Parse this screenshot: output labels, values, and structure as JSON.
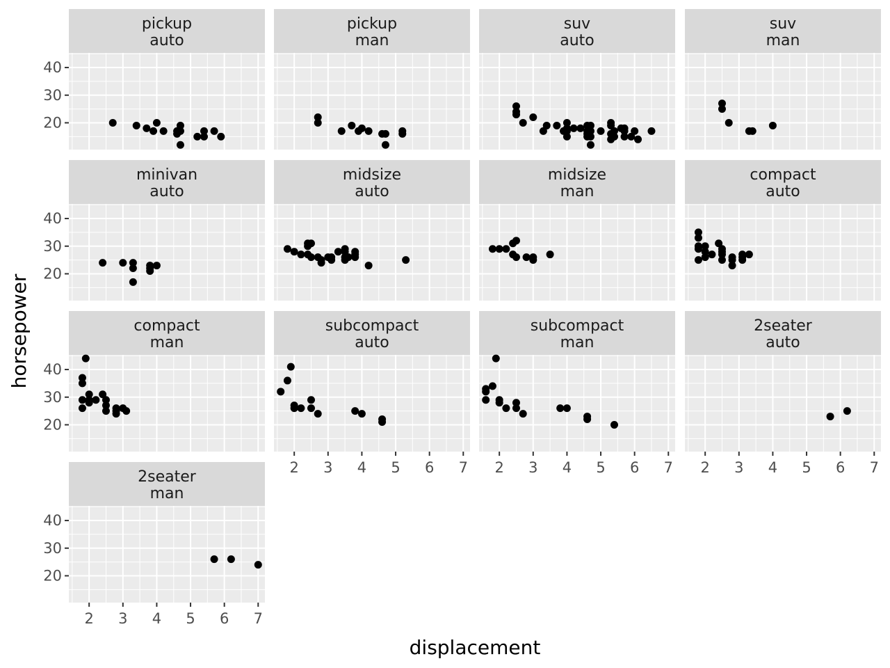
{
  "chart_data": {
    "type": "scatter",
    "xlabel": "displacement",
    "ylabel": "horsepower",
    "xlim": [
      1.4,
      7.2
    ],
    "ylim": [
      10.3,
      45.3
    ],
    "x_ticks": [
      2,
      3,
      4,
      5,
      6,
      7
    ],
    "y_ticks": [
      20,
      30,
      40
    ],
    "grid": true,
    "point_color": "#000000",
    "panel_bg": "#ebebeb",
    "strip_bg": "#d9d9d9",
    "panels": [
      {
        "label_top": "pickup",
        "label_bottom": "auto",
        "points": [
          [
            2.7,
            20
          ],
          [
            3.4,
            19
          ],
          [
            3.7,
            18
          ],
          [
            3.9,
            17
          ],
          [
            4.0,
            20
          ],
          [
            4.2,
            17
          ],
          [
            4.6,
            16
          ],
          [
            4.6,
            17
          ],
          [
            4.7,
            19
          ],
          [
            4.7,
            12
          ],
          [
            4.7,
            17
          ],
          [
            5.2,
            15
          ],
          [
            5.4,
            15
          ],
          [
            5.4,
            17
          ],
          [
            5.7,
            17
          ],
          [
            5.9,
            15
          ]
        ]
      },
      {
        "label_top": "pickup",
        "label_bottom": "man",
        "points": [
          [
            2.7,
            22
          ],
          [
            2.7,
            20
          ],
          [
            3.4,
            17
          ],
          [
            3.7,
            19
          ],
          [
            3.9,
            17
          ],
          [
            4.0,
            18
          ],
          [
            4.2,
            17
          ],
          [
            4.6,
            16
          ],
          [
            4.7,
            12
          ],
          [
            4.7,
            16
          ],
          [
            5.2,
            17
          ],
          [
            5.2,
            16
          ]
        ]
      },
      {
        "label_top": "suv",
        "label_bottom": "auto",
        "points": [
          [
            2.5,
            26
          ],
          [
            2.5,
            24
          ],
          [
            2.5,
            23
          ],
          [
            2.7,
            20
          ],
          [
            3.0,
            22
          ],
          [
            3.3,
            17
          ],
          [
            3.4,
            19
          ],
          [
            3.7,
            19
          ],
          [
            3.9,
            17
          ],
          [
            4.0,
            20
          ],
          [
            4.0,
            18
          ],
          [
            4.0,
            15
          ],
          [
            4.0,
            17
          ],
          [
            4.2,
            18
          ],
          [
            4.4,
            18
          ],
          [
            4.6,
            17
          ],
          [
            4.6,
            19
          ],
          [
            4.6,
            15
          ],
          [
            4.6,
            16
          ],
          [
            4.7,
            19
          ],
          [
            4.7,
            17
          ],
          [
            4.7,
            15
          ],
          [
            4.7,
            12
          ],
          [
            5.0,
            17
          ],
          [
            5.3,
            20
          ],
          [
            5.3,
            19
          ],
          [
            5.3,
            16
          ],
          [
            5.3,
            14
          ],
          [
            5.4,
            17
          ],
          [
            5.4,
            15
          ],
          [
            5.6,
            18
          ],
          [
            5.7,
            18
          ],
          [
            5.7,
            15
          ],
          [
            5.7,
            17
          ],
          [
            5.9,
            15
          ],
          [
            6.0,
            17
          ],
          [
            6.1,
            14
          ],
          [
            6.5,
            17
          ]
        ]
      },
      {
        "label_top": "suv",
        "label_bottom": "man",
        "points": [
          [
            2.5,
            27
          ],
          [
            2.5,
            25
          ],
          [
            2.7,
            20
          ],
          [
            3.3,
            17
          ],
          [
            3.4,
            17
          ],
          [
            4.0,
            19
          ]
        ]
      },
      {
        "label_top": "minivan",
        "label_bottom": "auto",
        "points": [
          [
            2.4,
            24
          ],
          [
            3.0,
            24
          ],
          [
            3.3,
            24
          ],
          [
            3.3,
            22
          ],
          [
            3.3,
            17
          ],
          [
            3.8,
            23
          ],
          [
            3.8,
            22
          ],
          [
            3.8,
            21
          ],
          [
            4.0,
            23
          ]
        ]
      },
      {
        "label_top": "midsize",
        "label_bottom": "auto",
        "points": [
          [
            1.8,
            29
          ],
          [
            2.0,
            28
          ],
          [
            2.2,
            27
          ],
          [
            2.4,
            31
          ],
          [
            2.4,
            30
          ],
          [
            2.4,
            27
          ],
          [
            2.5,
            31
          ],
          [
            2.5,
            26
          ],
          [
            2.7,
            26
          ],
          [
            2.8,
            24
          ],
          [
            2.8,
            25
          ],
          [
            3.0,
            26
          ],
          [
            3.1,
            26
          ],
          [
            3.1,
            25
          ],
          [
            3.3,
            28
          ],
          [
            3.5,
            28
          ],
          [
            3.5,
            29
          ],
          [
            3.5,
            26
          ],
          [
            3.5,
            25
          ],
          [
            3.6,
            26
          ],
          [
            3.8,
            26
          ],
          [
            3.8,
            28
          ],
          [
            3.8,
            27
          ],
          [
            4.2,
            23
          ],
          [
            5.3,
            25
          ]
        ]
      },
      {
        "label_top": "midsize",
        "label_bottom": "man",
        "points": [
          [
            1.8,
            29
          ],
          [
            2.0,
            29
          ],
          [
            2.2,
            29
          ],
          [
            2.4,
            31
          ],
          [
            2.4,
            27
          ],
          [
            2.5,
            32
          ],
          [
            2.5,
            26
          ],
          [
            2.8,
            26
          ],
          [
            3.0,
            26
          ],
          [
            3.0,
            25
          ],
          [
            3.5,
            27
          ]
        ]
      },
      {
        "label_top": "compact",
        "label_bottom": "auto",
        "points": [
          [
            1.8,
            35
          ],
          [
            1.8,
            33
          ],
          [
            1.8,
            30
          ],
          [
            1.8,
            29
          ],
          [
            1.8,
            25
          ],
          [
            2.0,
            30
          ],
          [
            2.0,
            28
          ],
          [
            2.0,
            26
          ],
          [
            2.2,
            27
          ],
          [
            2.4,
            31
          ],
          [
            2.5,
            29
          ],
          [
            2.5,
            28
          ],
          [
            2.5,
            27
          ],
          [
            2.5,
            25
          ],
          [
            2.8,
            26
          ],
          [
            2.8,
            25
          ],
          [
            2.8,
            23
          ],
          [
            3.1,
            27
          ],
          [
            3.1,
            25
          ],
          [
            3.1,
            26
          ],
          [
            3.3,
            27
          ]
        ]
      },
      {
        "label_top": "compact",
        "label_bottom": "man",
        "points": [
          [
            1.8,
            37
          ],
          [
            1.8,
            35
          ],
          [
            1.8,
            29
          ],
          [
            1.8,
            26
          ],
          [
            1.9,
            44
          ],
          [
            2.0,
            31
          ],
          [
            2.0,
            29
          ],
          [
            2.0,
            28
          ],
          [
            2.2,
            29
          ],
          [
            2.4,
            31
          ],
          [
            2.5,
            29
          ],
          [
            2.5,
            27
          ],
          [
            2.5,
            25
          ],
          [
            2.8,
            26
          ],
          [
            2.8,
            25
          ],
          [
            2.8,
            24
          ],
          [
            3.0,
            26
          ],
          [
            3.1,
            25
          ]
        ]
      },
      {
        "label_top": "subcompact",
        "label_bottom": "auto",
        "points": [
          [
            1.6,
            32
          ],
          [
            1.8,
            36
          ],
          [
            1.9,
            41
          ],
          [
            2.0,
            27
          ],
          [
            2.0,
            26
          ],
          [
            2.2,
            26
          ],
          [
            2.5,
            29
          ],
          [
            2.5,
            26
          ],
          [
            2.7,
            24
          ],
          [
            3.8,
            25
          ],
          [
            4.0,
            24
          ],
          [
            4.6,
            22
          ],
          [
            4.6,
            21
          ]
        ]
      },
      {
        "label_top": "subcompact",
        "label_bottom": "man",
        "points": [
          [
            1.6,
            33
          ],
          [
            1.6,
            32
          ],
          [
            1.6,
            29
          ],
          [
            1.8,
            34
          ],
          [
            1.9,
            44
          ],
          [
            2.0,
            29
          ],
          [
            2.0,
            28
          ],
          [
            2.2,
            26
          ],
          [
            2.5,
            28
          ],
          [
            2.5,
            26
          ],
          [
            2.7,
            24
          ],
          [
            3.8,
            26
          ],
          [
            4.0,
            26
          ],
          [
            4.6,
            23
          ],
          [
            4.6,
            22
          ],
          [
            5.4,
            20
          ]
        ]
      },
      {
        "label_top": "2seater",
        "label_bottom": "auto",
        "points": [
          [
            5.7,
            23
          ],
          [
            6.2,
            25
          ]
        ]
      },
      {
        "label_top": "2seater",
        "label_bottom": "man",
        "points": [
          [
            5.7,
            26
          ],
          [
            6.2,
            26
          ],
          [
            7.0,
            24
          ]
        ]
      }
    ]
  }
}
